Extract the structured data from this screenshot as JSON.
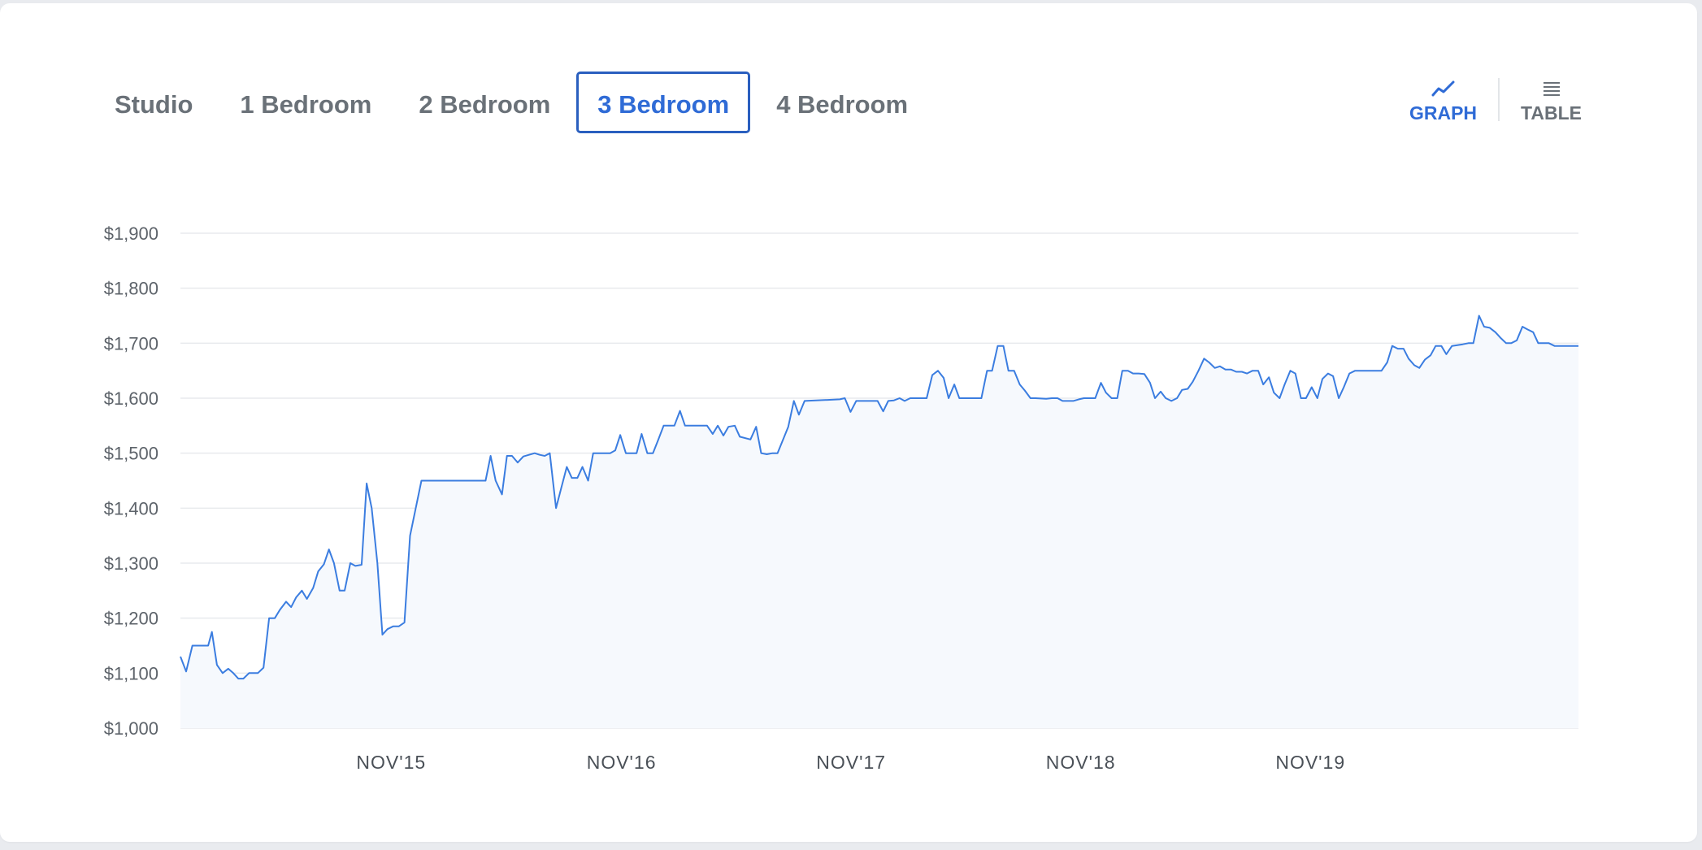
{
  "tabs": [
    {
      "label": "Studio",
      "active": false
    },
    {
      "label": "1 Bedroom",
      "active": false
    },
    {
      "label": "2 Bedroom",
      "active": false
    },
    {
      "label": "3 Bedroom",
      "active": true
    },
    {
      "label": "4 Bedroom",
      "active": false
    }
  ],
  "views": {
    "graph": {
      "label": "GRAPH",
      "icon": "line-chart-icon",
      "active": true
    },
    "table": {
      "label": "TABLE",
      "icon": "list-icon",
      "active": false
    }
  },
  "colors": {
    "accent": "#2f6bd6",
    "line": "#3b7de0",
    "fill": "#f6f9fd",
    "grid": "#e8eaed"
  },
  "chart_data": {
    "type": "area",
    "title": "",
    "xlabel": "",
    "ylabel": "",
    "ylim": [
      1000,
      1900
    ],
    "yticks": [
      {
        "value": 1000,
        "label": "$1,000"
      },
      {
        "value": 1100,
        "label": "$1,100"
      },
      {
        "value": 1200,
        "label": "$1,200"
      },
      {
        "value": 1300,
        "label": "$1,300"
      },
      {
        "value": 1400,
        "label": "$1,400"
      },
      {
        "value": 1500,
        "label": "$1,500"
      },
      {
        "value": 1600,
        "label": "$1,600"
      },
      {
        "value": 1700,
        "label": "$1,700"
      },
      {
        "value": 1800,
        "label": "$1,800"
      },
      {
        "value": 1900,
        "label": "$1,900"
      }
    ],
    "xlim": [
      "2014-12-01",
      "2020-12-31"
    ],
    "xticks": [
      {
        "date": "2015-11-01",
        "label": "NOV'15"
      },
      {
        "date": "2016-11-01",
        "label": "NOV'16"
      },
      {
        "date": "2017-11-01",
        "label": "NOV'17"
      },
      {
        "date": "2018-11-01",
        "label": "NOV'18"
      },
      {
        "date": "2019-11-01",
        "label": "NOV'19"
      }
    ],
    "grid": true,
    "series": [
      {
        "values": [
          [
            "2014-12-01",
            1130
          ],
          [
            "2014-12-10",
            1103
          ],
          [
            "2014-12-20",
            1150
          ],
          [
            "2015-01-06",
            1150
          ],
          [
            "2015-01-14",
            1150
          ],
          [
            "2015-01-20",
            1175
          ],
          [
            "2015-01-28",
            1115
          ],
          [
            "2015-02-06",
            1100
          ],
          [
            "2015-02-15",
            1108
          ],
          [
            "2015-02-23",
            1100
          ],
          [
            "2015-03-03",
            1090
          ],
          [
            "2015-03-11",
            1090
          ],
          [
            "2015-03-20",
            1100
          ],
          [
            "2015-04-03",
            1100
          ],
          [
            "2015-04-12",
            1110
          ],
          [
            "2015-04-21",
            1200
          ],
          [
            "2015-04-30",
            1200
          ],
          [
            "2015-05-08",
            1215
          ],
          [
            "2015-05-18",
            1230
          ],
          [
            "2015-05-26",
            1220
          ],
          [
            "2015-06-03",
            1238
          ],
          [
            "2015-06-12",
            1250
          ],
          [
            "2015-06-20",
            1235
          ],
          [
            "2015-06-30",
            1255
          ],
          [
            "2015-07-08",
            1285
          ],
          [
            "2015-07-17",
            1298
          ],
          [
            "2015-07-25",
            1325
          ],
          [
            "2015-08-02",
            1300
          ],
          [
            "2015-08-11",
            1250
          ],
          [
            "2015-08-19",
            1250
          ],
          [
            "2015-08-28",
            1300
          ],
          [
            "2015-09-05",
            1295
          ],
          [
            "2015-09-15",
            1297
          ],
          [
            "2015-09-23",
            1445
          ],
          [
            "2015-10-01",
            1400
          ],
          [
            "2015-10-10",
            1300
          ],
          [
            "2015-10-18",
            1170
          ],
          [
            "2015-10-26",
            1180
          ],
          [
            "2015-11-04",
            1185
          ],
          [
            "2015-11-13",
            1185
          ],
          [
            "2015-11-22",
            1192
          ],
          [
            "2015-12-01",
            1350
          ],
          [
            "2015-12-10",
            1400
          ],
          [
            "2015-12-19",
            1450
          ],
          [
            "2016-03-30",
            1450
          ],
          [
            "2016-04-07",
            1495
          ],
          [
            "2016-04-15",
            1450
          ],
          [
            "2016-04-25",
            1425
          ],
          [
            "2016-05-03",
            1495
          ],
          [
            "2016-05-11",
            1495
          ],
          [
            "2016-05-20",
            1483
          ],
          [
            "2016-05-29",
            1494
          ],
          [
            "2016-06-07",
            1497
          ],
          [
            "2016-06-16",
            1500
          ],
          [
            "2016-06-24",
            1497
          ],
          [
            "2016-07-02",
            1495
          ],
          [
            "2016-07-10",
            1500
          ],
          [
            "2016-07-20",
            1400
          ],
          [
            "2016-07-29",
            1440
          ],
          [
            "2016-08-06",
            1475
          ],
          [
            "2016-08-14",
            1455
          ],
          [
            "2016-08-23",
            1455
          ],
          [
            "2016-08-31",
            1475
          ],
          [
            "2016-09-09",
            1450
          ],
          [
            "2016-09-17",
            1500
          ],
          [
            "2016-10-14",
            1500
          ],
          [
            "2016-10-22",
            1505
          ],
          [
            "2016-10-30",
            1533
          ],
          [
            "2016-11-08",
            1500
          ],
          [
            "2016-11-25",
            1500
          ],
          [
            "2016-12-03",
            1535
          ],
          [
            "2016-12-12",
            1500
          ],
          [
            "2016-12-21",
            1500
          ],
          [
            "2016-12-29",
            1523
          ],
          [
            "2017-01-07",
            1550
          ],
          [
            "2017-01-24",
            1550
          ],
          [
            "2017-02-02",
            1577
          ],
          [
            "2017-02-10",
            1550
          ],
          [
            "2017-03-08",
            1550
          ],
          [
            "2017-03-17",
            1550
          ],
          [
            "2017-03-26",
            1535
          ],
          [
            "2017-04-03",
            1550
          ],
          [
            "2017-04-12",
            1532
          ],
          [
            "2017-04-20",
            1548
          ],
          [
            "2017-04-30",
            1550
          ],
          [
            "2017-05-08",
            1530
          ],
          [
            "2017-05-25",
            1525
          ],
          [
            "2017-06-03",
            1548
          ],
          [
            "2017-06-11",
            1500
          ],
          [
            "2017-06-20",
            1498
          ],
          [
            "2017-06-29",
            1500
          ],
          [
            "2017-07-07",
            1500
          ],
          [
            "2017-07-24",
            1548
          ],
          [
            "2017-08-02",
            1595
          ],
          [
            "2017-08-10",
            1570
          ],
          [
            "2017-08-19",
            1595
          ],
          [
            "2017-10-14",
            1598
          ],
          [
            "2017-10-22",
            1600
          ],
          [
            "2017-10-31",
            1575
          ],
          [
            "2017-11-09",
            1595
          ],
          [
            "2017-12-04",
            1595
          ],
          [
            "2017-12-13",
            1595
          ],
          [
            "2017-12-22",
            1576
          ],
          [
            "2017-12-30",
            1595
          ],
          [
            "2018-01-08",
            1596
          ],
          [
            "2018-01-17",
            1600
          ],
          [
            "2018-01-25",
            1595
          ],
          [
            "2018-02-03",
            1600
          ],
          [
            "2018-03-01",
            1600
          ],
          [
            "2018-03-10",
            1642
          ],
          [
            "2018-03-19",
            1650
          ],
          [
            "2018-03-28",
            1637
          ],
          [
            "2018-04-05",
            1600
          ],
          [
            "2018-04-14",
            1625
          ],
          [
            "2018-04-22",
            1600
          ],
          [
            "2018-05-02",
            1600
          ],
          [
            "2018-05-27",
            1600
          ],
          [
            "2018-06-05",
            1650
          ],
          [
            "2018-06-13",
            1650
          ],
          [
            "2018-06-22",
            1695
          ],
          [
            "2018-07-01",
            1695
          ],
          [
            "2018-07-09",
            1650
          ],
          [
            "2018-07-18",
            1650
          ],
          [
            "2018-07-27",
            1625
          ],
          [
            "2018-08-04",
            1614
          ],
          [
            "2018-08-13",
            1600
          ],
          [
            "2018-08-21",
            1600
          ],
          [
            "2018-09-07",
            1599
          ],
          [
            "2018-09-16",
            1600
          ],
          [
            "2018-09-25",
            1600
          ],
          [
            "2018-10-03",
            1595
          ],
          [
            "2018-10-12",
            1595
          ],
          [
            "2018-10-20",
            1595
          ],
          [
            "2018-10-29",
            1598
          ],
          [
            "2018-11-06",
            1600
          ],
          [
            "2018-11-24",
            1600
          ],
          [
            "2018-12-03",
            1628
          ],
          [
            "2018-12-11",
            1610
          ],
          [
            "2018-12-20",
            1600
          ],
          [
            "2018-12-29",
            1600
          ],
          [
            "2019-01-06",
            1650
          ],
          [
            "2019-01-15",
            1650
          ],
          [
            "2019-01-23",
            1645
          ],
          [
            "2019-02-01",
            1645
          ],
          [
            "2019-02-10",
            1644
          ],
          [
            "2019-02-19",
            1628
          ],
          [
            "2019-02-27",
            1600
          ],
          [
            "2019-03-08",
            1612
          ],
          [
            "2019-03-16",
            1600
          ],
          [
            "2019-03-25",
            1595
          ],
          [
            "2019-04-03",
            1600
          ],
          [
            "2019-04-11",
            1615
          ],
          [
            "2019-04-20",
            1617
          ],
          [
            "2019-04-28",
            1630
          ],
          [
            "2019-05-07",
            1650
          ],
          [
            "2019-05-16",
            1672
          ],
          [
            "2019-05-24",
            1665
          ],
          [
            "2019-06-02",
            1655
          ],
          [
            "2019-06-10",
            1658
          ],
          [
            "2019-06-19",
            1652
          ],
          [
            "2019-06-28",
            1652
          ],
          [
            "2019-07-06",
            1648
          ],
          [
            "2019-07-15",
            1648
          ],
          [
            "2019-07-23",
            1645
          ],
          [
            "2019-08-01",
            1650
          ],
          [
            "2019-08-10",
            1650
          ],
          [
            "2019-08-18",
            1625
          ],
          [
            "2019-08-27",
            1638
          ],
          [
            "2019-09-04",
            1610
          ],
          [
            "2019-09-13",
            1600
          ],
          [
            "2019-09-21",
            1625
          ],
          [
            "2019-09-30",
            1650
          ],
          [
            "2019-10-08",
            1645
          ],
          [
            "2019-10-17",
            1600
          ],
          [
            "2019-10-25",
            1600
          ],
          [
            "2019-11-03",
            1620
          ],
          [
            "2019-11-12",
            1600
          ],
          [
            "2019-11-20",
            1635
          ],
          [
            "2019-11-29",
            1645
          ],
          [
            "2019-12-07",
            1640
          ],
          [
            "2019-12-16",
            1600
          ],
          [
            "2019-12-24",
            1620
          ],
          [
            "2020-01-02",
            1645
          ],
          [
            "2020-01-11",
            1650
          ],
          [
            "2020-02-22",
            1650
          ],
          [
            "2020-03-02",
            1665
          ],
          [
            "2020-03-10",
            1695
          ],
          [
            "2020-03-19",
            1690
          ],
          [
            "2020-03-28",
            1690
          ],
          [
            "2020-04-05",
            1672
          ],
          [
            "2020-04-14",
            1660
          ],
          [
            "2020-04-22",
            1655
          ],
          [
            "2020-05-01",
            1670
          ],
          [
            "2020-05-10",
            1678
          ],
          [
            "2020-05-18",
            1695
          ],
          [
            "2020-05-27",
            1695
          ],
          [
            "2020-06-04",
            1680
          ],
          [
            "2020-06-13",
            1695
          ],
          [
            "2020-06-30",
            1698
          ],
          [
            "2020-07-09",
            1700
          ],
          [
            "2020-07-17",
            1700
          ],
          [
            "2020-07-26",
            1750
          ],
          [
            "2020-08-03",
            1730
          ],
          [
            "2020-08-12",
            1728
          ],
          [
            "2020-08-21",
            1720
          ],
          [
            "2020-08-29",
            1710
          ],
          [
            "2020-09-07",
            1700
          ],
          [
            "2020-09-15",
            1700
          ],
          [
            "2020-09-24",
            1705
          ],
          [
            "2020-10-03",
            1730
          ],
          [
            "2020-10-11",
            1725
          ],
          [
            "2020-10-20",
            1720
          ],
          [
            "2020-10-28",
            1700
          ],
          [
            "2020-11-06",
            1700
          ],
          [
            "2020-11-14",
            1700
          ],
          [
            "2020-11-23",
            1695
          ],
          [
            "2020-12-31",
            1695
          ]
        ]
      }
    ]
  }
}
